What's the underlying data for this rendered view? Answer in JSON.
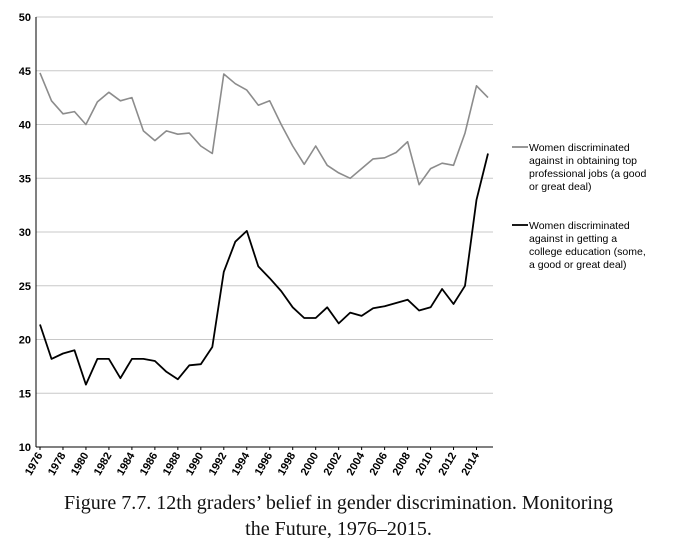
{
  "caption": {
    "line1": "Figure 7.7. 12th graders’ belief in gender discrimination. Monitoring",
    "line2": "the Future, 1976–2015."
  },
  "chart_data": {
    "type": "line",
    "title": "",
    "xlabel": "",
    "ylabel": "",
    "ylim": [
      10,
      50
    ],
    "yticks": [
      10,
      15,
      20,
      25,
      30,
      35,
      40,
      45,
      50
    ],
    "xlim": [
      1976,
      2015
    ],
    "xtick_labels": [
      "1976",
      "1978",
      "1980",
      "1982",
      "1984",
      "1986",
      "1988",
      "1990",
      "1992",
      "1994",
      "1996",
      "1998",
      "2000",
      "2002",
      "2004",
      "2006",
      "2008",
      "2010",
      "2012",
      "2014"
    ],
    "grid": "horizontal",
    "legend_position": "right",
    "x": [
      1976,
      1977,
      1978,
      1979,
      1980,
      1981,
      1982,
      1983,
      1984,
      1985,
      1986,
      1987,
      1988,
      1989,
      1990,
      1991,
      1992,
      1993,
      1994,
      1995,
      1996,
      1997,
      1998,
      1999,
      2000,
      2001,
      2002,
      2003,
      2004,
      2005,
      2006,
      2007,
      2008,
      2009,
      2010,
      2011,
      2012,
      2013,
      2014,
      2015
    ],
    "series": [
      {
        "name": "Women discriminated against in obtaining top professional jobs (a good or great deal)",
        "legend_lines": [
          "Women discriminated",
          "against in obtaining top",
          "professional jobs (a good",
          "or great deal)"
        ],
        "color": "#8c8c8c",
        "values": [
          44.8,
          42.2,
          41.0,
          41.2,
          40.0,
          42.1,
          43.0,
          42.2,
          42.5,
          39.4,
          38.5,
          39.4,
          39.1,
          39.2,
          38.0,
          37.3,
          44.7,
          43.8,
          43.2,
          41.8,
          42.2,
          40.0,
          38.0,
          36.3,
          38.0,
          36.2,
          35.5,
          35.0,
          35.9,
          36.8,
          36.9,
          37.4,
          38.4,
          34.4,
          35.9,
          36.4,
          36.2,
          39.2,
          43.6,
          42.5
        ]
      },
      {
        "name": "Women discriminated against in getting a college education (some, a good or great deal)",
        "legend_lines": [
          "Women discriminated",
          "against in getting a",
          "college education (some,",
          "a good or great deal)"
        ],
        "color": "#000000",
        "values": [
          21.4,
          18.2,
          18.7,
          19.0,
          15.8,
          18.2,
          18.2,
          16.4,
          18.2,
          18.2,
          18.0,
          17.0,
          16.3,
          17.6,
          17.7,
          19.3,
          26.3,
          29.1,
          30.1,
          26.8,
          25.7,
          24.5,
          23.0,
          22.0,
          22.0,
          23.0,
          21.5,
          22.5,
          22.2,
          22.9,
          23.1,
          23.4,
          23.7,
          22.7,
          23.0,
          24.7,
          23.3,
          25.0,
          33.0,
          37.3
        ]
      }
    ]
  }
}
